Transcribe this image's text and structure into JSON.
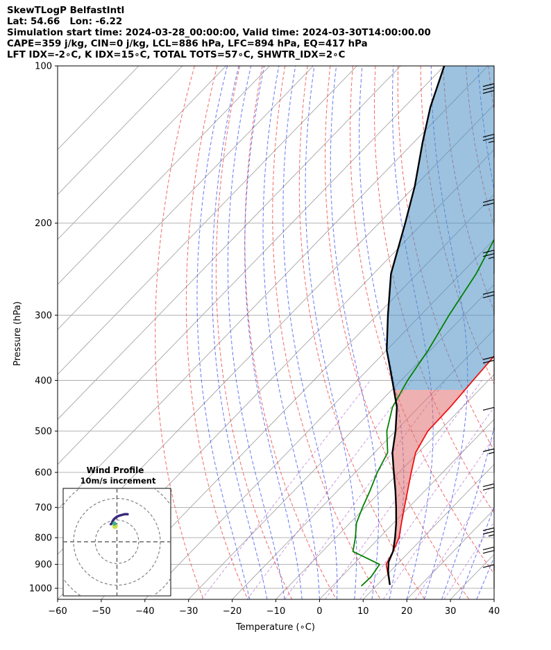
{
  "header": {
    "line1": "SkewTLogP BelfastIntl",
    "line2": "Lat: 54.66   Lon: -6.22",
    "line3": "Simulation start time: 2024-03-28_00:00:00, Valid time: 2024-03-30T14:00:00.00",
    "line4": "CAPE=359 j/kg, CIN=0 j/kg, LCL=886 hPa, LFC=894 hPa, EQ=417 hPa",
    "line5": "LFT IDX=-2∘C, K IDX=15∘C, TOTAL TOTS=57∘C, SHWTR_IDX=2∘C"
  },
  "chart_data": {
    "type": "line",
    "subtype": "skew-T log-P diagram",
    "xlabel": "Temperature (∘C)",
    "ylabel": "Pressure (hPa)",
    "xlim": [
      -60,
      40
    ],
    "ylim": [
      1050,
      100
    ],
    "y_scale": "log",
    "x_ticks": [
      -60,
      -50,
      -40,
      -30,
      -20,
      -10,
      0,
      10,
      20,
      30,
      40
    ],
    "y_ticks": [
      100,
      200,
      300,
      400,
      500,
      600,
      700,
      800,
      900,
      1000
    ],
    "grid": true,
    "series": [
      {
        "role": "temperature",
        "color": "#ee1111",
        "points": [
          [
            12.9,
            985
          ],
          [
            7.5,
            900
          ],
          [
            6.2,
            850
          ],
          [
            4.5,
            800
          ],
          [
            1.8,
            750
          ],
          [
            -1.0,
            700
          ],
          [
            -4.0,
            650
          ],
          [
            -7.2,
            600
          ],
          [
            -10.6,
            550
          ],
          [
            -12.6,
            500
          ],
          [
            -12.8,
            450
          ],
          [
            -13.5,
            400
          ],
          [
            -14.2,
            350
          ],
          [
            -14.8,
            300
          ],
          [
            -15.5,
            270
          ],
          [
            -14.3,
            250
          ],
          [
            -10.5,
            220
          ],
          [
            -4.6,
            200
          ],
          [
            2.8,
            180
          ],
          [
            5.8,
            160
          ],
          [
            8.8,
            150
          ],
          [
            12.8,
            140
          ],
          [
            15.0,
            130
          ],
          [
            18.2,
            120
          ],
          [
            20.0,
            110
          ],
          [
            21.8,
            100
          ]
        ]
      },
      {
        "role": "dewpoint",
        "color": "#008000",
        "points": [
          [
            6.6,
            990
          ],
          [
            6.8,
            950
          ],
          [
            6.0,
            900
          ],
          [
            -3.0,
            850
          ],
          [
            -5.5,
            800
          ],
          [
            -8.5,
            750
          ],
          [
            -10.6,
            700
          ],
          [
            -12.6,
            650
          ],
          [
            -15.0,
            600
          ],
          [
            -17.0,
            550
          ],
          [
            -22.0,
            500
          ],
          [
            -26.0,
            450
          ],
          [
            -28.5,
            400
          ],
          [
            -30.5,
            350
          ],
          [
            -33.5,
            300
          ],
          [
            -36.5,
            250
          ],
          [
            -40.5,
            210
          ],
          [
            -44.8,
            190
          ],
          [
            -46.5,
            180
          ],
          [
            -48.5,
            170
          ],
          [
            -51.5,
            160
          ],
          [
            -55.5,
            150
          ],
          [
            -59.5,
            140
          ],
          [
            -63.5,
            130
          ],
          [
            -68.0,
            120
          ],
          [
            -73.0,
            110
          ],
          [
            -78.0,
            100
          ]
        ]
      },
      {
        "role": "parcel",
        "color": "#000000",
        "points": [
          [
            12.9,
            985
          ],
          [
            9.6,
            930
          ],
          [
            7.5,
            890
          ],
          [
            6.2,
            850
          ],
          [
            3.6,
            800
          ],
          [
            0.6,
            750
          ],
          [
            -2.9,
            700
          ],
          [
            -6.8,
            650
          ],
          [
            -11.2,
            600
          ],
          [
            -15.9,
            550
          ],
          [
            -20.0,
            500
          ],
          [
            -25.0,
            450
          ],
          [
            -32.0,
            400
          ],
          [
            -40.0,
            350
          ],
          [
            -47.5,
            300
          ],
          [
            -56.0,
            250
          ],
          [
            -64.0,
            200
          ],
          [
            -70.0,
            170
          ],
          [
            -78.0,
            140
          ],
          [
            -84.0,
            120
          ],
          [
            -90.0,
            100
          ]
        ]
      }
    ],
    "shaded_regions": [
      {
        "label": "",
        "color": "#e07070",
        "between": [
          "parcel",
          "temperature"
        ],
        "p_range": [
          890,
          417
        ]
      },
      {
        "label": "",
        "color": "#4a8fc4",
        "between": [
          "parcel",
          "temperature"
        ],
        "p_range": [
          417,
          100
        ]
      }
    ],
    "wind_barbs": [
      {
        "p": 1000,
        "speed_kt": 10,
        "dir_deg": 270
      },
      {
        "p": 925,
        "speed_kt": 20,
        "dir_deg": 285
      },
      {
        "p": 850,
        "speed_kt": 25,
        "dir_deg": 275
      },
      {
        "p": 700,
        "speed_kt": 20,
        "dir_deg": 270
      },
      {
        "p": 600,
        "speed_kt": 15,
        "dir_deg": 270
      },
      {
        "p": 500,
        "speed_kt": 10,
        "dir_deg": 260
      },
      {
        "p": 400,
        "speed_kt": 20,
        "dir_deg": 270
      },
      {
        "p": 300,
        "speed_kt": 20,
        "dir_deg": 270
      },
      {
        "p": 250,
        "speed_kt": 25,
        "dir_deg": 270
      },
      {
        "p": 200,
        "speed_kt": 20,
        "dir_deg": 270
      },
      {
        "p": 150,
        "speed_kt": 25,
        "dir_deg": 270
      },
      {
        "p": 120,
        "speed_kt": 30,
        "dir_deg": 270
      }
    ],
    "inset": {
      "title": "Wind Profile",
      "subtitle": "10m/s increment",
      "type": "hodograph",
      "rings": [
        10,
        20,
        30,
        40
      ],
      "points": [
        [
          -4,
          3
        ],
        [
          -3,
          4
        ],
        [
          -3,
          5
        ],
        [
          -2,
          7
        ],
        [
          0,
          9
        ],
        [
          2,
          10
        ],
        [
          5,
          11
        ],
        [
          7,
          11
        ]
      ]
    }
  }
}
